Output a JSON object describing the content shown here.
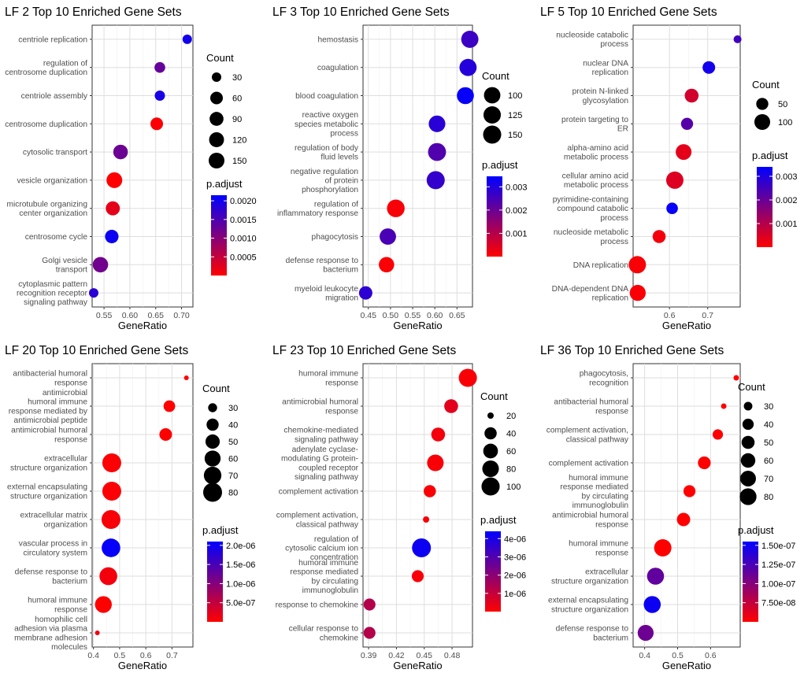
{
  "chart_data": [
    {
      "type": "scatter",
      "title": "LF 2 Top 10 Enriched Gene Sets",
      "xlabel": "GeneRatio",
      "xlim": [
        0.527,
        0.722
      ],
      "xticks": [
        0.55,
        0.6,
        0.65,
        0.7
      ],
      "xtick_labels": [
        "0.55",
        "0.60",
        "0.65",
        "0.70"
      ],
      "terms": [
        {
          "label": [
            "centriole replication"
          ],
          "x": 0.711,
          "count": 30,
          "padj": 0.002
        },
        {
          "label": [
            "regulation of",
            "centrosome duplication"
          ],
          "x": 0.658,
          "count": 35,
          "padj": 0.0013
        },
        {
          "label": [
            "centriole assembly"
          ],
          "x": 0.658,
          "count": 32,
          "padj": 0.00195
        },
        {
          "label": [
            "centrosome duplication"
          ],
          "x": 0.652,
          "count": 60,
          "padj": 3e-05
        },
        {
          "label": [
            "cytosolic transport"
          ],
          "x": 0.582,
          "count": 110,
          "padj": 0.00125
        },
        {
          "label": [
            "vesicle organization"
          ],
          "x": 0.57,
          "count": 150,
          "padj": 1e-05
        },
        {
          "label": [
            "microtubule organizing",
            "center organization"
          ],
          "x": 0.567,
          "count": 95,
          "padj": 0.00022
        },
        {
          "label": [
            "centrosome cycle"
          ],
          "x": 0.565,
          "count": 80,
          "padj": 0.00205
        },
        {
          "label": [
            "Golgi vesicle",
            "transport"
          ],
          "x": 0.543,
          "count": 140,
          "padj": 0.0012
        },
        {
          "label": [
            "cytoplasmic pattern",
            "recognition receptor",
            "signaling pathway"
          ],
          "x": 0.53,
          "count": 30,
          "padj": 0.0018
        }
      ],
      "count_legend": {
        "title": "Count",
        "values": [
          30,
          60,
          90,
          120,
          150
        ]
      },
      "padj_legend": {
        "title": "p.adjust",
        "range": [
          0.0,
          0.00215
        ],
        "ticks": [
          0.0005,
          0.001,
          0.0015,
          0.002
        ],
        "labels": [
          "0.0005",
          "0.0010",
          "0.0015",
          "0.0020"
        ]
      },
      "colors": {
        "low": "#ff0000",
        "high": "#0000ff"
      }
    },
    {
      "type": "scatter",
      "title": "LF 3 Top 10 Enriched Gene Sets",
      "xlabel": "GeneRatio",
      "xlim": [
        0.438,
        0.685
      ],
      "xticks": [
        0.45,
        0.5,
        0.55,
        0.6,
        0.65
      ],
      "xtick_labels": [
        "0.45",
        "0.50",
        "0.55",
        "0.60",
        "0.65"
      ],
      "terms": [
        {
          "label": [
            "hemostasis"
          ],
          "x": 0.679,
          "count": 120,
          "padj": 0.00265
        },
        {
          "label": [
            "coagulation"
          ],
          "x": 0.675,
          "count": 120,
          "padj": 0.00295
        },
        {
          "label": [
            "blood coagulation"
          ],
          "x": 0.669,
          "count": 115,
          "padj": 0.00335
        },
        {
          "label": [
            "reactive oxygen",
            "species metabolic",
            "process"
          ],
          "x": 0.605,
          "count": 105,
          "padj": 0.0029
        },
        {
          "label": [
            "regulation of body",
            "fluid levels"
          ],
          "x": 0.605,
          "count": 145,
          "padj": 0.00235
        },
        {
          "label": [
            "negative regulation",
            "of protein",
            "phosphorylation"
          ],
          "x": 0.602,
          "count": 150,
          "padj": 0.00275
        },
        {
          "label": [
            "regulation of",
            "inflammatory response"
          ],
          "x": 0.512,
          "count": 135,
          "padj": 0.0001
        },
        {
          "label": [
            "phagocytosis"
          ],
          "x": 0.494,
          "count": 100,
          "padj": 0.00245
        },
        {
          "label": [
            "defense response to",
            "bacterium"
          ],
          "x": 0.491,
          "count": 80,
          "padj": 5e-05
        },
        {
          "label": [
            "myeloid leukocyte",
            "migration"
          ],
          "x": 0.444,
          "count": 65,
          "padj": 0.00285
        }
      ],
      "count_legend": {
        "title": "Count",
        "values": [
          100,
          125,
          150
        ]
      },
      "padj_legend": {
        "title": "p.adjust",
        "range": [
          0.0,
          0.00345
        ],
        "ticks": [
          0.001,
          0.002,
          0.003
        ],
        "labels": [
          "0.001",
          "0.002",
          "0.003"
        ]
      },
      "colors": {
        "low": "#ff0000",
        "high": "#0000ff"
      }
    },
    {
      "type": "scatter",
      "title": "LF 5 Top 10 Enriched Gene Sets",
      "xlabel": "GeneRatio",
      "xlim": [
        0.505,
        0.785
      ],
      "xticks": [
        0.6,
        0.7
      ],
      "xtick_labels": [
        "0.6",
        "0.7"
      ],
      "terms": [
        {
          "label": [
            "nucleoside catabolic",
            "process"
          ],
          "x": 0.778,
          "count": 30,
          "padj": 0.00255
        },
        {
          "label": [
            "nuclear DNA",
            "replication"
          ],
          "x": 0.703,
          "count": 55,
          "padj": 0.00315
        },
        {
          "label": [
            "protein N-linked",
            "glycosylation"
          ],
          "x": 0.658,
          "count": 70,
          "padj": 0.0006
        },
        {
          "label": [
            "protein targeting to",
            "ER"
          ],
          "x": 0.646,
          "count": 50,
          "padj": 0.00225
        },
        {
          "label": [
            "alpha-amino acid",
            "metabolic process"
          ],
          "x": 0.637,
          "count": 100,
          "padj": 0.00035
        },
        {
          "label": [
            "cellular amino acid",
            "metabolic process"
          ],
          "x": 0.614,
          "count": 130,
          "padj": 0.00045
        },
        {
          "label": [
            "pyrimidine-containing",
            "compound catabolic",
            "process"
          ],
          "x": 0.607,
          "count": 45,
          "padj": 0.0033
        },
        {
          "label": [
            "nucleoside metabolic",
            "process"
          ],
          "x": 0.573,
          "count": 60,
          "padj": 0.00015
        },
        {
          "label": [
            "DNA replication"
          ],
          "x": 0.516,
          "count": 130,
          "padj": 8e-05
        },
        {
          "label": [
            "DNA-dependent DNA",
            "replication"
          ],
          "x": 0.517,
          "count": 105,
          "padj": 8e-05
        }
      ],
      "count_legend": {
        "title": "Count",
        "values": [
          50,
          100
        ]
      },
      "padj_legend": {
        "title": "p.adjust",
        "range": [
          0.0,
          0.0034
        ],
        "ticks": [
          0.001,
          0.002,
          0.003
        ],
        "labels": [
          "0.001",
          "0.002",
          "0.003"
        ]
      },
      "colors": {
        "low": "#ff0000",
        "high": "#0000ff"
      }
    },
    {
      "type": "scatter",
      "title": "LF 20 Top 10 Enriched Gene Sets",
      "xlabel": "GeneRatio",
      "xlim": [
        0.395,
        0.78
      ],
      "xticks": [
        0.4,
        0.5,
        0.6,
        0.7
      ],
      "xtick_labels": [
        "0.4",
        "0.5",
        "0.6",
        "0.7"
      ],
      "terms": [
        {
          "label": [
            "antibacterial humoral",
            "response"
          ],
          "x": 0.755,
          "count": 25,
          "padj": 0.0
        },
        {
          "label": [
            "antimicrobial",
            "humoral immune",
            "response mediated by",
            "antimicrobial peptide"
          ],
          "x": 0.69,
          "count": 38,
          "padj": 0.0
        },
        {
          "label": [
            "antimicrobial humoral",
            "response"
          ],
          "x": 0.676,
          "count": 42,
          "padj": 0.0
        },
        {
          "label": [
            "extracellular",
            "structure organization"
          ],
          "x": 0.47,
          "count": 80,
          "padj": 3e-08
        },
        {
          "label": [
            "external encapsulating",
            "structure organization"
          ],
          "x": 0.47,
          "count": 80,
          "padj": 3e-08
        },
        {
          "label": [
            "extracellular matrix",
            "organization"
          ],
          "x": 0.467,
          "count": 80,
          "padj": 6e-08
        },
        {
          "label": [
            "vascular process in",
            "circulatory system"
          ],
          "x": 0.467,
          "count": 78,
          "padj": 2.05e-06
        },
        {
          "label": [
            "defense response to",
            "bacterium"
          ],
          "x": 0.457,
          "count": 72,
          "padj": 1e-07
        },
        {
          "label": [
            "humoral immune",
            "response"
          ],
          "x": 0.438,
          "count": 65,
          "padj": 0.0
        },
        {
          "label": [
            "homophilic cell",
            "adhesion via plasma",
            "membrane adhesion",
            "molecules"
          ],
          "x": 0.415,
          "count": 25,
          "padj": 1e-07
        }
      ],
      "count_legend": {
        "title": "Count",
        "values": [
          30,
          40,
          50,
          60,
          70,
          80
        ]
      },
      "padj_legend": {
        "title": "p.adjust",
        "range": [
          0.0,
          2.1e-06
        ],
        "ticks": [
          5e-07,
          1e-06,
          1.5e-06,
          2e-06
        ],
        "labels": [
          "5.0e-07",
          "1.0e-06",
          "1.5e-06",
          "2.0e-06"
        ]
      },
      "colors": {
        "low": "#ff0000",
        "high": "#0000ff"
      }
    },
    {
      "type": "scatter",
      "title": "LF 23 Top 10 Enriched Gene Sets",
      "xlabel": "GeneRatio",
      "xlim": [
        0.384,
        0.502
      ],
      "xticks": [
        0.39,
        0.42,
        0.45,
        0.48
      ],
      "xtick_labels": [
        "0.39",
        "0.42",
        "0.45",
        "0.48"
      ],
      "terms": [
        {
          "label": [
            "humoral immune",
            "response"
          ],
          "x": 0.497,
          "count": 100,
          "padj": 1e-07
        },
        {
          "label": [
            "antimicrobial humoral",
            "response"
          ],
          "x": 0.479,
          "count": 52,
          "padj": 5e-07
        },
        {
          "label": [
            "chemokine-mediated",
            "signaling pathway"
          ],
          "x": 0.465,
          "count": 52,
          "padj": 2e-07
        },
        {
          "label": [
            "adenylate cyclase-",
            "modulating G protein-",
            "coupled receptor",
            "signaling pathway"
          ],
          "x": 0.462,
          "count": 80,
          "padj": 1e-07
        },
        {
          "label": [
            "complement activation"
          ],
          "x": 0.456,
          "count": 40,
          "padj": 1e-07
        },
        {
          "label": [
            "complement activation,",
            "classical pathway"
          ],
          "x": 0.452,
          "count": 20,
          "padj": 1e-07
        },
        {
          "label": [
            "regulation of",
            "cytosolic calcium ion",
            "concentration"
          ],
          "x": 0.447,
          "count": 110,
          "padj": 4.2e-06
        },
        {
          "label": [
            "humoral immune",
            "response mediated",
            "by circulating",
            "immunoglobulin"
          ],
          "x": 0.443,
          "count": 38,
          "padj": 1e-07
        },
        {
          "label": [
            "response to chemokine"
          ],
          "x": 0.391,
          "count": 38,
          "padj": 1.3e-06
        },
        {
          "label": [
            "cellular response to",
            "chemokine"
          ],
          "x": 0.391,
          "count": 38,
          "padj": 1.3e-06
        }
      ],
      "count_legend": {
        "title": "Count",
        "values": [
          20,
          40,
          60,
          80,
          100
        ]
      },
      "padj_legend": {
        "title": "p.adjust",
        "range": [
          0.0,
          4.4e-06
        ],
        "ticks": [
          1e-06,
          2e-06,
          3e-06,
          4e-06
        ],
        "labels": [
          "1e-06",
          "2e-06",
          "3e-06",
          "4e-06"
        ]
      },
      "colors": {
        "low": "#ff0000",
        "high": "#0000ff"
      }
    },
    {
      "type": "scatter",
      "title": "LF 36 Top 10 Enriched Gene Sets",
      "xlabel": "GeneRatio",
      "xlim": [
        0.365,
        0.69
      ],
      "xticks": [
        0.4,
        0.5,
        0.6
      ],
      "xtick_labels": [
        "0.4",
        "0.5",
        "0.6"
      ],
      "terms": [
        {
          "label": [
            "phagocytosis,",
            "recognition"
          ],
          "x": 0.678,
          "count": 26,
          "padj": 0.0
        },
        {
          "label": [
            "antibacterial humoral",
            "response"
          ],
          "x": 0.64,
          "count": 26,
          "padj": 0.0
        },
        {
          "label": [
            "complement activation,",
            "classical pathway"
          ],
          "x": 0.622,
          "count": 36,
          "padj": 0.0
        },
        {
          "label": [
            "complement activation"
          ],
          "x": 0.581,
          "count": 48,
          "padj": 0.0
        },
        {
          "label": [
            "humoral immune",
            "response mediated",
            "by circulating",
            "immunoglobulin"
          ],
          "x": 0.536,
          "count": 44,
          "padj": 0.0
        },
        {
          "label": [
            "antimicrobial humoral",
            "response"
          ],
          "x": 0.518,
          "count": 52,
          "padj": 0.0
        },
        {
          "label": [
            "humoral immune",
            "response"
          ],
          "x": 0.455,
          "count": 85,
          "padj": 2e-08
        },
        {
          "label": [
            "extracellular",
            "structure organization"
          ],
          "x": 0.433,
          "count": 82,
          "padj": 1.15e-07
        },
        {
          "label": [
            "external encapsulating",
            "structure organization"
          ],
          "x": 0.423,
          "count": 82,
          "padj": 1.5e-07
        },
        {
          "label": [
            "defense response to",
            "bacterium"
          ],
          "x": 0.403,
          "count": 72,
          "padj": 1.1e-07
        }
      ],
      "count_legend": {
        "title": "Count",
        "values": [
          30,
          40,
          50,
          60,
          70,
          80
        ]
      },
      "padj_legend": {
        "title": "p.adjust",
        "range": [
          5e-08,
          1.55e-07
        ],
        "ticks": [
          7.5e-08,
          1e-07,
          1.25e-07,
          1.5e-07
        ],
        "labels": [
          "7.50e-08",
          "1.00e-07",
          "1.25e-07",
          "1.50e-07"
        ]
      },
      "colors": {
        "low": "#ff0000",
        "high": "#0000ff"
      }
    }
  ]
}
